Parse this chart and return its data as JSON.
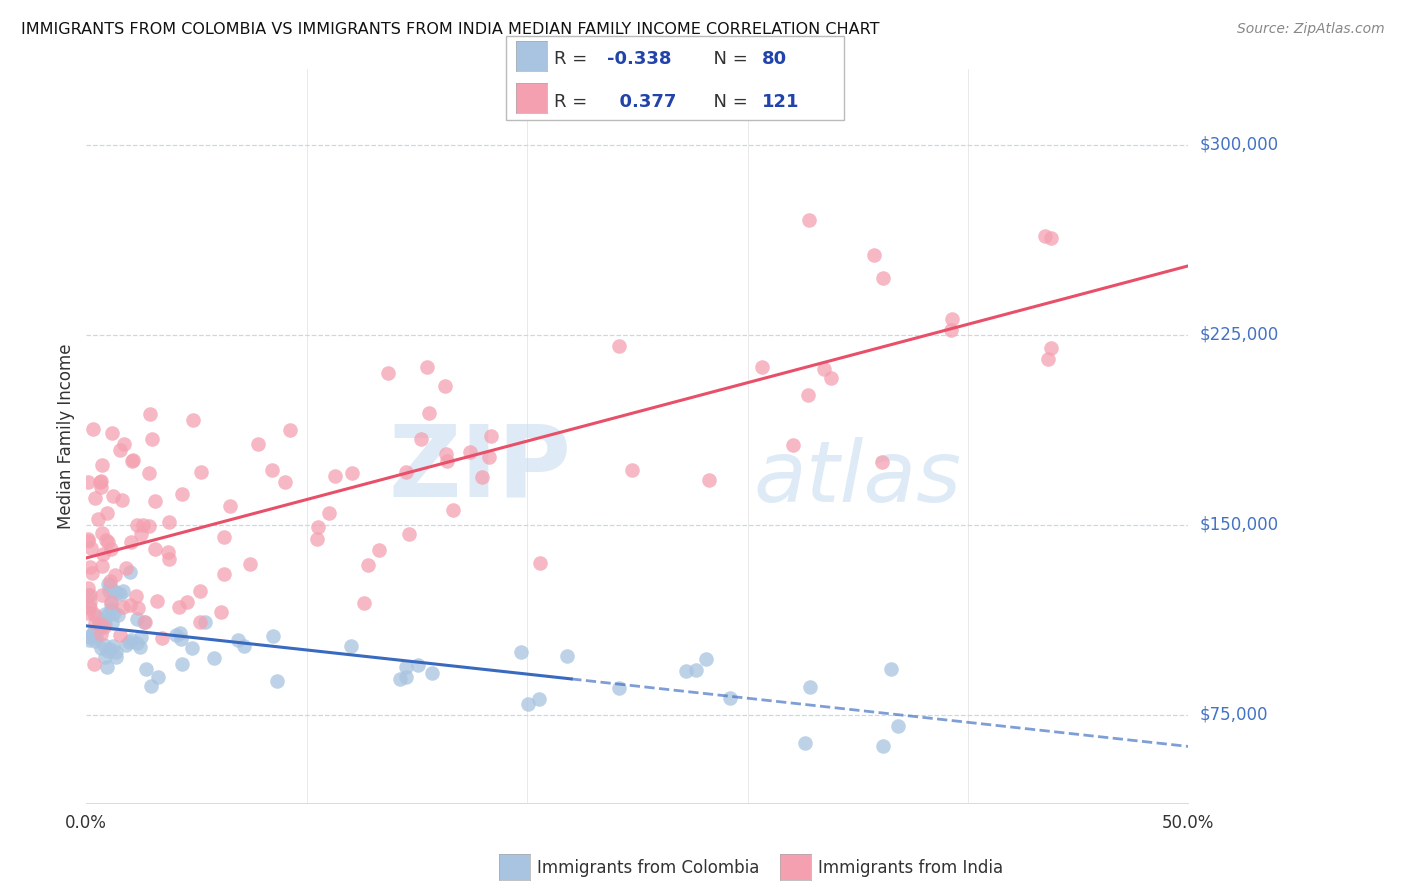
{
  "title": "IMMIGRANTS FROM COLOMBIA VS IMMIGRANTS FROM INDIA MEDIAN FAMILY INCOME CORRELATION CHART",
  "source": "Source: ZipAtlas.com",
  "ylabel": "Median Family Income",
  "y_ticks": [
    75000,
    150000,
    225000,
    300000
  ],
  "y_tick_labels": [
    "$75,000",
    "$150,000",
    "$225,000",
    "$300,000"
  ],
  "x_min": 0.0,
  "x_max": 50.0,
  "y_min": 40000,
  "y_max": 330000,
  "colombia_color": "#a8c4e0",
  "india_color": "#f4a0b0",
  "colombia_line_color": "#3a6abf",
  "india_line_color": "#e8506a",
  "watermark_color": "#c8ddf0",
  "grid_color": "#c8d8e8",
  "R_colombia": -0.338,
  "N_colombia": 80,
  "R_india": 0.377,
  "N_india": 121,
  "legend_title_color": "#333333",
  "legend_value_color": "#2244aa",
  "axis_label_color": "#4472c4",
  "text_color": "#333333",
  "source_color": "#888888"
}
